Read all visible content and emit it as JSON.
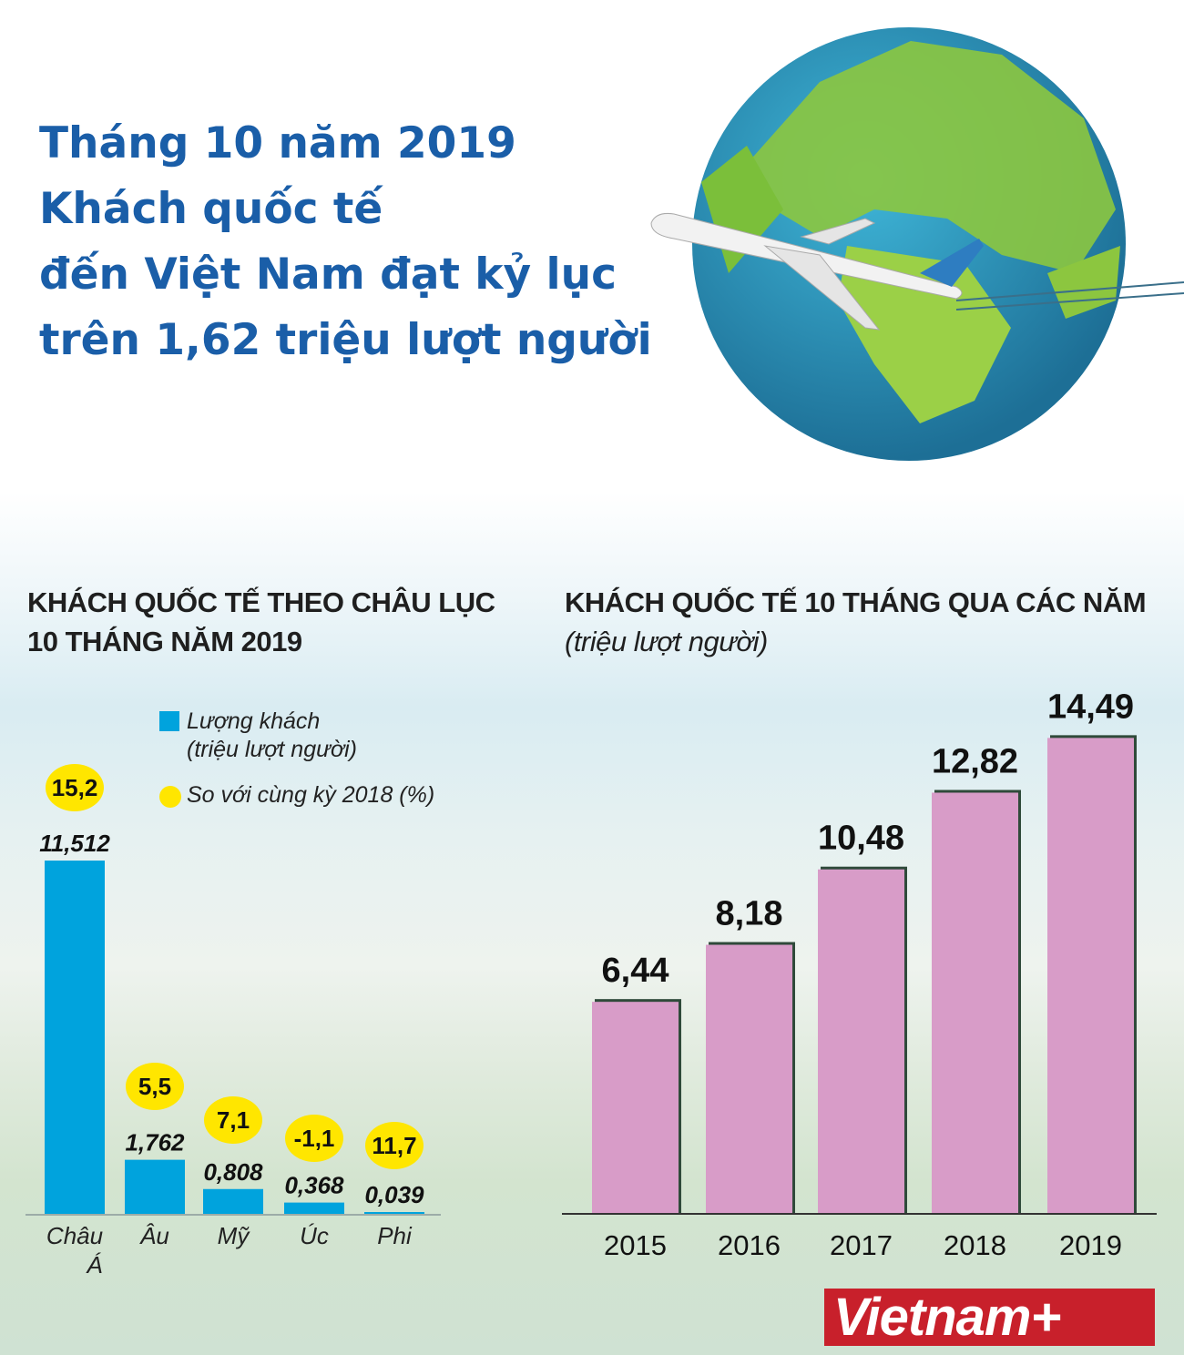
{
  "title": [
    "Tháng 10 năm 2019",
    "Khách quốc tế",
    "đến Việt Nam đạt kỷ lục",
    "trên 1,62 triệu lượt người"
  ],
  "logo": "Vietnam+",
  "chart_data": [
    {
      "type": "bar",
      "title": [
        "KHÁCH QUỐC TẾ THEO CHÂU LỤC",
        "10 THÁNG NĂM 2019"
      ],
      "categories": [
        "Châu Á",
        "Âu",
        "Mỹ",
        "Úc",
        "Phi"
      ],
      "series": [
        {
          "name": "Lượng khách (triệu lượt người)",
          "values": [
            11.512,
            1.762,
            0.808,
            0.368,
            0.039
          ],
          "labels": [
            "11,512",
            "1,762",
            "0,808",
            "0,368",
            "0,039"
          ],
          "color": "#00a3dd"
        },
        {
          "name": "So với cùng kỳ 2018 (%)",
          "values": [
            15.2,
            5.5,
            7.1,
            -1.1,
            11.7
          ],
          "labels": [
            "15,2",
            "5,5",
            "7,1",
            "-1,1",
            "11,7"
          ],
          "color": "#ffe600"
        }
      ],
      "legend": [
        "Lượng khách",
        "(triệu lượt người)",
        "So với cùng kỳ 2018 (%)"
      ]
    },
    {
      "type": "bar",
      "title": "KHÁCH QUỐC TẾ 10 THÁNG QUA CÁC NĂM",
      "subtitle": "(triệu lượt người)",
      "categories": [
        "2015",
        "2016",
        "2017",
        "2018",
        "2019"
      ],
      "values": [
        6.44,
        8.18,
        10.48,
        12.82,
        14.49
      ],
      "labels": [
        "6,44",
        "8,18",
        "10,48",
        "12,82",
        "14,49"
      ],
      "color": "#d89cc8"
    }
  ]
}
